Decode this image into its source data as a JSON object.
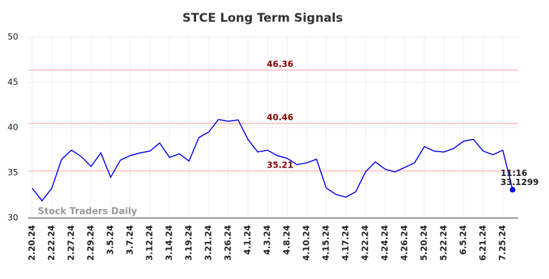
{
  "chart_data": {
    "type": "line",
    "title": "STCE Long Term Signals",
    "categories": [
      "2.20.24",
      null,
      "2.22.24",
      null,
      "2.27.24",
      null,
      "2.29.24",
      null,
      "3.5.24",
      null,
      "3.7.24",
      null,
      "3.12.24",
      null,
      "3.14.24",
      null,
      "3.19.24",
      null,
      "3.21.24",
      null,
      "3.26.24",
      null,
      "4.1.24",
      null,
      "4.3.24",
      null,
      "4.8.24",
      null,
      "4.10.24",
      null,
      "4.15.24",
      null,
      "4.17.24",
      null,
      "4.22.24",
      null,
      "4.24.24",
      null,
      "4.26.24",
      null,
      "5.20.24",
      null,
      "5.22.24",
      null,
      "6.5.24",
      null,
      "6.21.24",
      null,
      "7.25.24",
      null
    ],
    "series": [
      {
        "color": "#0000ee",
        "values": [
          33.3,
          31.9,
          33.3,
          36.5,
          37.5,
          36.8,
          35.7,
          37.2,
          34.5,
          36.4,
          36.9,
          37.2,
          37.4,
          38.3,
          36.7,
          37.1,
          36.3,
          38.9,
          39.5,
          40.9,
          40.7,
          40.85,
          38.7,
          37.3,
          37.5,
          36.9,
          36.6,
          35.9,
          36.1,
          36.5,
          33.3,
          32.6,
          32.3,
          32.9,
          35.1,
          36.2,
          35.4,
          35.1,
          35.6,
          36.1,
          37.9,
          37.4,
          37.3,
          37.7,
          38.5,
          38.7,
          37.4,
          37.0,
          37.5,
          33.1299
        ]
      }
    ],
    "hlines": [
      {
        "value": 46.36,
        "color": "#ffcccc"
      },
      {
        "value": 40.46,
        "color": "#ffcccc"
      },
      {
        "value": 35.21,
        "color": "#ffcccc"
      }
    ],
    "last_time": "11:16",
    "watermark": "Stock Traders Daily",
    "ylim": [
      30,
      50
    ],
    "yticks": [
      30,
      35,
      40,
      45,
      50
    ],
    "grid": true
  }
}
